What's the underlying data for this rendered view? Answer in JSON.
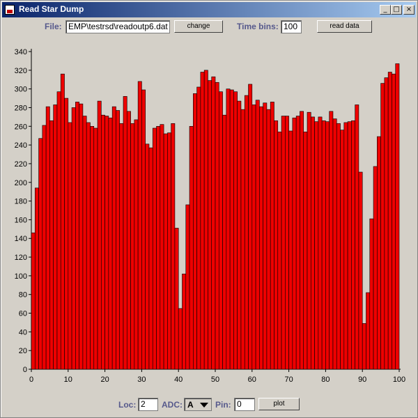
{
  "window": {
    "title": "Read Star Dump",
    "minimize": "_",
    "maximize": "□",
    "close": "×"
  },
  "toolbar": {
    "file_label": "File:",
    "file_value": "EMP\\testrsd\\readoutp6.dat",
    "change_label": "change",
    "time_bins_label": "Time bins:",
    "time_bins_value": "100",
    "read_data_label": "read data"
  },
  "bottom": {
    "loc_label": "Loc:",
    "loc_value": "2",
    "adc_label": "ADC:",
    "adc_value": "A",
    "pin_label": "Pin:",
    "pin_value": "0",
    "plot_label": "plot"
  },
  "colors": {
    "bar_fill": "#ee0000",
    "bar_stroke": "#000000",
    "label_color": "#56598c"
  },
  "chart_data": {
    "type": "bar",
    "xlim": [
      0,
      100
    ],
    "ylim": [
      0,
      340
    ],
    "xticks": [
      "0",
      "10",
      "20",
      "30",
      "40",
      "50",
      "60",
      "70",
      "80",
      "90",
      "100"
    ],
    "yticks": [
      "0",
      "20",
      "40",
      "60",
      "80",
      "100",
      "120",
      "140",
      "160",
      "180",
      "200",
      "220",
      "240",
      "260",
      "280",
      "300",
      "320",
      "340"
    ],
    "values": [
      146,
      194,
      247,
      261,
      281,
      266,
      283,
      297,
      316,
      290,
      264,
      280,
      286,
      284,
      271,
      264,
      260,
      258,
      287,
      272,
      271,
      269,
      281,
      277,
      263,
      292,
      276,
      263,
      267,
      308,
      299,
      241,
      237,
      258,
      260,
      262,
      252,
      253,
      263,
      151,
      65,
      102,
      176,
      260,
      295,
      302,
      318,
      320,
      309,
      313,
      307,
      297,
      272,
      300,
      299,
      297,
      287,
      278,
      293,
      305,
      283,
      288,
      281,
      285,
      278,
      286,
      266,
      254,
      271,
      271,
      255,
      269,
      271,
      276,
      254,
      275,
      270,
      265,
      270,
      266,
      265,
      276,
      268,
      263,
      256,
      264,
      265,
      266,
      283,
      211,
      49,
      82,
      161,
      217,
      249,
      306,
      312,
      318,
      316,
      327
    ]
  }
}
